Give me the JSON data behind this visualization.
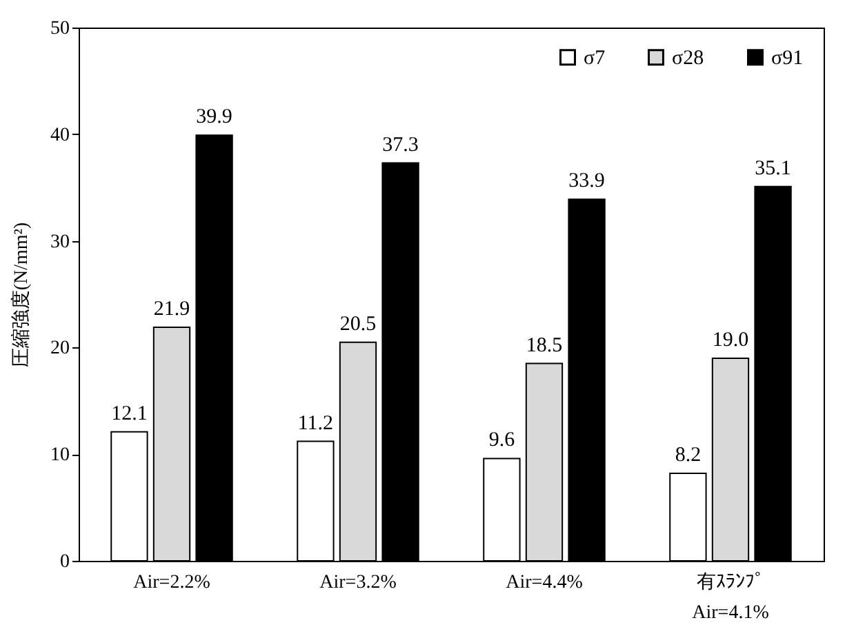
{
  "chart_data": {
    "type": "bar",
    "ylabel": "圧縮強度(N/mm²)",
    "categories": [
      "Air=2.2%",
      "Air=3.2%",
      "Air=4.4%",
      "有ｽﾗﾝﾌﾟ\nAir=4.1%"
    ],
    "series": [
      {
        "name": "σ7",
        "color": "#ffffff",
        "values": [
          12.1,
          11.2,
          9.6,
          8.2
        ],
        "value_labels": [
          "12.1",
          "11.2",
          "9.6",
          "8.2"
        ]
      },
      {
        "name": "σ28",
        "color": "#d9d9d9",
        "values": [
          21.9,
          20.5,
          18.5,
          19.0
        ],
        "value_labels": [
          "21.9",
          "20.5",
          "18.5",
          "19.0"
        ]
      },
      {
        "name": "σ91",
        "color": "#000000",
        "values": [
          39.9,
          37.3,
          33.9,
          35.1
        ],
        "value_labels": [
          "39.9",
          "37.3",
          "33.9",
          "35.1"
        ]
      }
    ],
    "ylim": [
      0,
      50
    ],
    "yticks": [
      0,
      10,
      20,
      30,
      40,
      50
    ],
    "grid": false,
    "legend": "top right"
  }
}
